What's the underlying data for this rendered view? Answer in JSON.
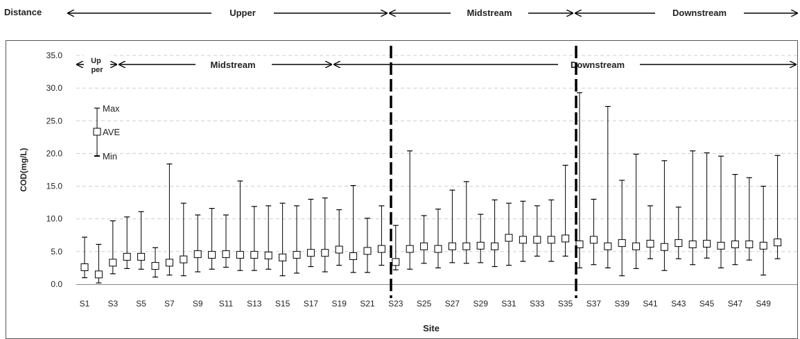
{
  "top_banner": {
    "distance_label": "Distance",
    "segments": [
      "Upper",
      "Midstream",
      "Downstream"
    ]
  },
  "inner_banner": {
    "segments": [
      "Up\nper",
      "Midstream",
      "Downstream"
    ]
  },
  "legend": {
    "max": "Max",
    "ave": "AVE",
    "min": "Min"
  },
  "colors": {
    "grid": "#cccccc",
    "mark": "#000000",
    "box_fill": "#ffffff"
  },
  "chart_data": {
    "type": "scatter",
    "title": "",
    "xlabel": "Site",
    "ylabel": "COD(mg/L)",
    "ylim": [
      0,
      35
    ],
    "yticks": [
      "0.0",
      "5.0",
      "10.0",
      "15.0",
      "20.0",
      "25.0",
      "30.0",
      "35.0"
    ],
    "grid": "horizontal dashed",
    "zone_dividers_after_site": [
      "S22",
      "S35"
    ],
    "x_tick_labels": [
      "S1",
      "S3",
      "S5",
      "S7",
      "S9",
      "S11",
      "S13",
      "S15",
      "S17",
      "S19",
      "S21",
      "S23",
      "S25",
      "S27",
      "S29",
      "S31",
      "S33",
      "S35",
      "S37",
      "S39",
      "S41",
      "S43",
      "S45",
      "S47",
      "S49"
    ],
    "sites": [
      "S1",
      "S2",
      "S3",
      "S4",
      "S5",
      "S6",
      "S7",
      "S8",
      "S9",
      "S10",
      "S11",
      "S12",
      "S13",
      "S14",
      "S15",
      "S16",
      "S17",
      "S18",
      "S19",
      "S20",
      "S21",
      "S22",
      "S23",
      "S24",
      "S25",
      "S26",
      "S27",
      "S28",
      "S29",
      "S30",
      "S31",
      "S32",
      "S33",
      "S34",
      "S35",
      "S36",
      "S37",
      "S38",
      "S39",
      "S40",
      "S41",
      "S42",
      "S43",
      "S44",
      "S45",
      "S46",
      "S47",
      "S48",
      "S49",
      "S50"
    ],
    "series": [
      {
        "name": "Max",
        "values": [
          7.2,
          6.1,
          9.7,
          10.3,
          11.1,
          5.6,
          18.4,
          12.4,
          10.6,
          11.6,
          10.6,
          15.8,
          11.9,
          12.0,
          12.4,
          12.0,
          13.0,
          13.2,
          11.4,
          15.1,
          10.1,
          12.0,
          9.0,
          20.4,
          10.5,
          11.5,
          14.4,
          15.7,
          10.7,
          12.9,
          12.4,
          12.7,
          12.0,
          12.9,
          18.2,
          29.3,
          13.0,
          27.2,
          15.9,
          19.9,
          12.0,
          18.9,
          11.8,
          20.4,
          20.1,
          19.6,
          16.8,
          16.3,
          15.0,
          19.7
        ]
      },
      {
        "name": "AVE",
        "values": [
          2.6,
          1.5,
          3.3,
          4.2,
          4.2,
          2.8,
          3.3,
          3.8,
          4.6,
          4.5,
          4.6,
          4.5,
          4.5,
          4.4,
          4.1,
          4.5,
          4.8,
          4.8,
          5.3,
          4.3,
          5.1,
          5.4,
          3.4,
          5.4,
          5.8,
          5.4,
          5.8,
          5.8,
          5.9,
          5.8,
          7.1,
          6.8,
          6.8,
          6.8,
          7.0,
          6.1,
          6.8,
          5.8,
          6.3,
          5.8,
          6.2,
          5.7,
          6.3,
          6.1,
          6.2,
          5.9,
          6.1,
          6.1,
          5.9,
          6.4
        ]
      },
      {
        "name": "Min",
        "values": [
          1.0,
          0.2,
          1.6,
          2.4,
          2.3,
          1.1,
          1.4,
          1.3,
          1.9,
          2.3,
          2.6,
          2.1,
          2.1,
          2.3,
          1.3,
          1.7,
          2.7,
          1.9,
          2.9,
          1.8,
          1.8,
          2.9,
          2.2,
          2.3,
          3.2,
          2.5,
          3.3,
          3.2,
          3.3,
          2.7,
          2.9,
          3.5,
          4.3,
          3.5,
          4.3,
          2.5,
          3.0,
          2.5,
          1.3,
          2.4,
          3.9,
          2.1,
          3.9,
          3.0,
          4.0,
          2.5,
          3.0,
          3.7,
          1.4,
          3.9
        ]
      }
    ]
  }
}
